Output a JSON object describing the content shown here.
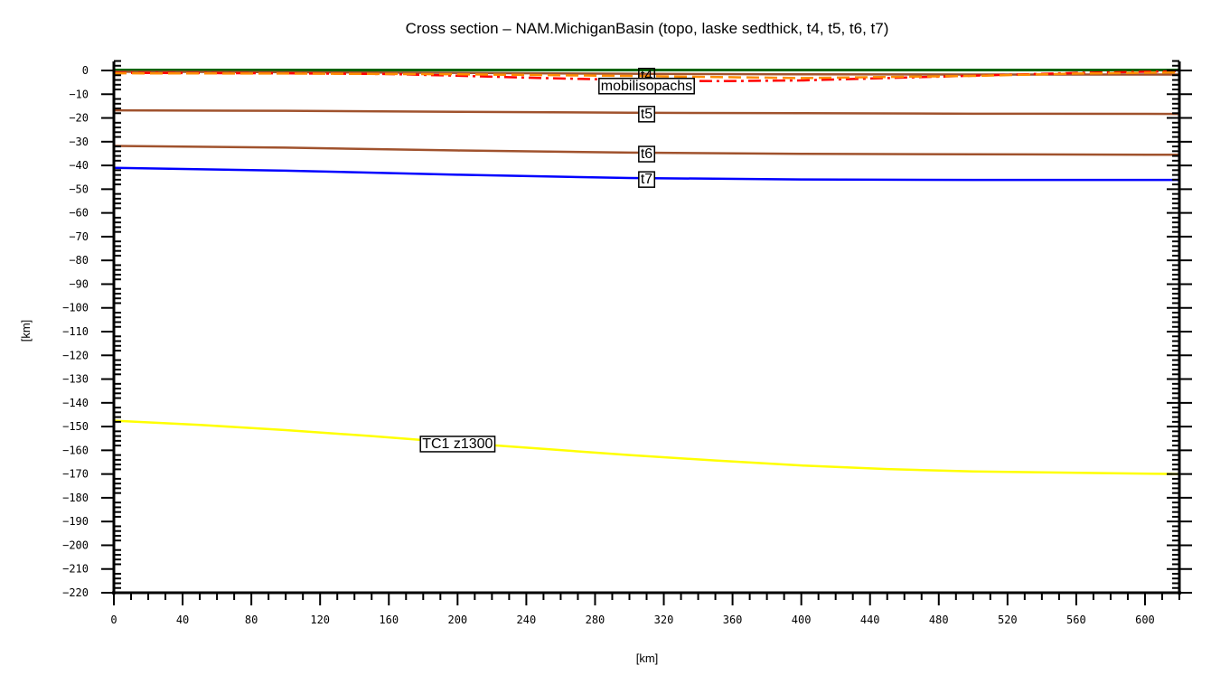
{
  "chart_data": {
    "type": "line",
    "title": "Cross section – NAM.MichiganBasin (topo, laske sedthick, t4, t5, t6, t7)",
    "xlabel": "[km]",
    "ylabel": "[km]",
    "xlim": [
      0,
      620
    ],
    "ylim": [
      -220,
      0
    ],
    "x_ticks": [
      0,
      40,
      80,
      120,
      160,
      200,
      240,
      280,
      320,
      360,
      400,
      440,
      480,
      520,
      560,
      600
    ],
    "y_ticks": [
      0,
      -10,
      -20,
      -30,
      -40,
      -50,
      -60,
      -70,
      -80,
      -90,
      -100,
      -110,
      -120,
      -130,
      -140,
      -150,
      -160,
      -170,
      -180,
      -190,
      -200,
      -210,
      -220
    ],
    "grid": false,
    "legend": "none (inline labels)",
    "series": [
      {
        "name": "topo",
        "color": "#006400",
        "style": "solid",
        "width": 3,
        "x": [
          0,
          620
        ],
        "y": [
          0.2,
          0.2
        ],
        "label": ""
      },
      {
        "name": "t4",
        "color": "#a0522d",
        "style": "solid",
        "width": 2.5,
        "x": [
          0,
          100,
          200,
          300,
          400,
          500,
          620
        ],
        "y": [
          -0.5,
          -0.7,
          -1.0,
          -1.4,
          -1.6,
          -1.7,
          -1.7
        ],
        "label": "t4",
        "label_x": 310
      },
      {
        "name": "laske sedthick",
        "color": "#ff0000",
        "style": "dashdot",
        "width": 2.5,
        "x": [
          0,
          100,
          160,
          200,
          250,
          300,
          350,
          400,
          450,
          500,
          560,
          620
        ],
        "y": [
          -1.0,
          -1.2,
          -1.5,
          -2.2,
          -3.2,
          -4.0,
          -4.5,
          -4.2,
          -3.2,
          -2.2,
          -1.0,
          -0.3
        ],
        "label": "",
        "label_x": null
      },
      {
        "name": "mobil isopachs",
        "color": "#ff8c00",
        "style": "dashed",
        "width": 2.5,
        "x": [
          0,
          100,
          200,
          300,
          400,
          500,
          560,
          620
        ],
        "y": [
          -1.2,
          -1.3,
          -1.6,
          -2.3,
          -3.2,
          -2.3,
          -1.3,
          -0.8
        ],
        "label": "mobilisopachs",
        "label_x": 310
      },
      {
        "name": "t5",
        "color": "#a0522d",
        "style": "solid",
        "width": 2.5,
        "x": [
          0,
          100,
          200,
          300,
          400,
          500,
          620
        ],
        "y": [
          -16.8,
          -17.0,
          -17.4,
          -17.8,
          -18.0,
          -18.2,
          -18.3
        ],
        "label": "t5",
        "label_x": 310
      },
      {
        "name": "t6",
        "color": "#a0522d",
        "style": "solid",
        "width": 2.5,
        "x": [
          0,
          100,
          200,
          300,
          400,
          500,
          620
        ],
        "y": [
          -31.8,
          -32.5,
          -33.7,
          -34.6,
          -35.1,
          -35.3,
          -35.5
        ],
        "label": "t6",
        "label_x": 310
      },
      {
        "name": "t7",
        "color": "#0000ff",
        "style": "solid",
        "width": 2.5,
        "x": [
          0,
          100,
          200,
          300,
          400,
          500,
          620
        ],
        "y": [
          -41.0,
          -42.2,
          -43.9,
          -45.3,
          -45.9,
          -46.1,
          -46.1
        ],
        "label": "t7",
        "label_x": 310
      },
      {
        "name": "TC1 z1300",
        "color": "#ffff00",
        "style": "solid",
        "width": 2.5,
        "x": [
          0,
          50,
          100,
          150,
          200,
          250,
          300,
          350,
          400,
          450,
          500,
          550,
          620
        ],
        "y": [
          -147.5,
          -149.3,
          -151.5,
          -154.0,
          -156.8,
          -159.4,
          -162.0,
          -164.3,
          -166.4,
          -167.9,
          -168.9,
          -169.4,
          -170.0
        ],
        "label": "TC1  z1300",
        "label_x": 200
      }
    ]
  }
}
